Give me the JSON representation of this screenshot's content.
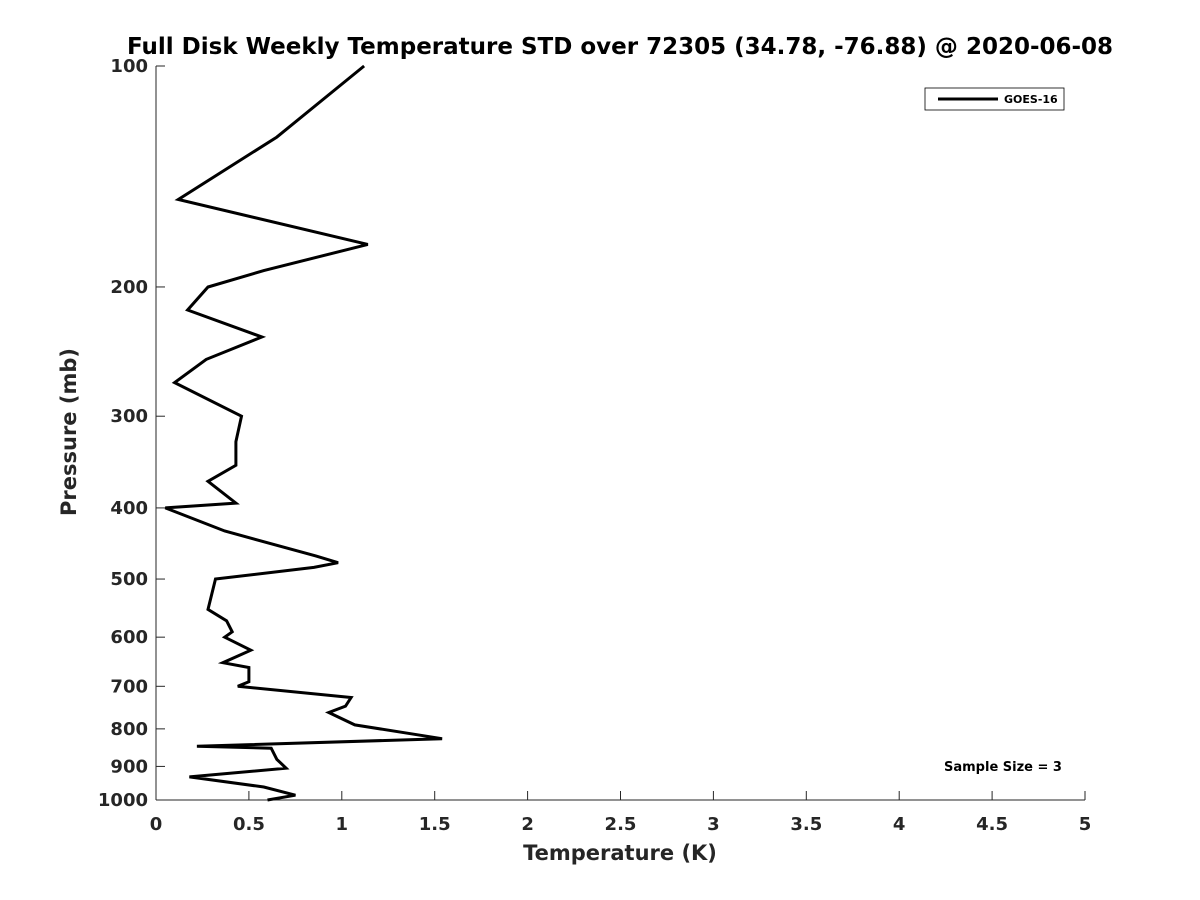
{
  "chart_data": {
    "type": "line",
    "title": "Full Disk Weekly Temperature STD over 72305 (34.78, -76.88) @ 2020-06-08",
    "xlabel": "Temperature (K)",
    "ylabel": "Pressure (mb)",
    "xlim": [
      0,
      5
    ],
    "ylim": [
      1000,
      100
    ],
    "y_scale": "log",
    "y_reversed": true,
    "grid": false,
    "legend_position": "top-right",
    "x_ticks": [
      "0",
      "0.5",
      "1",
      "1.5",
      "2",
      "2.5",
      "3",
      "3.5",
      "4",
      "4.5",
      "5"
    ],
    "y_ticks": [
      "100",
      "200",
      "300",
      "400",
      "500",
      "600",
      "700",
      "800",
      "900",
      "1000"
    ],
    "annotation": "Sample Size = 3",
    "series": [
      {
        "name": "GOES-16",
        "color": "#000000",
        "points": [
          [
            1.12,
            100
          ],
          [
            0.65,
            125
          ],
          [
            0.12,
            152
          ],
          [
            1.14,
            175
          ],
          [
            0.58,
            190
          ],
          [
            0.28,
            200
          ],
          [
            0.17,
            215
          ],
          [
            0.57,
            234
          ],
          [
            0.27,
            251
          ],
          [
            0.1,
            270
          ],
          [
            0.46,
            300
          ],
          [
            0.43,
            325
          ],
          [
            0.43,
            350
          ],
          [
            0.28,
            368
          ],
          [
            0.43,
            394
          ],
          [
            0.05,
            400
          ],
          [
            0.37,
            430
          ],
          [
            0.86,
            465
          ],
          [
            0.98,
            475
          ],
          [
            0.85,
            482
          ],
          [
            0.32,
            500
          ],
          [
            0.28,
            550
          ],
          [
            0.38,
            570
          ],
          [
            0.41,
            590
          ],
          [
            0.37,
            600
          ],
          [
            0.51,
            625
          ],
          [
            0.36,
            650
          ],
          [
            0.5,
            660
          ],
          [
            0.5,
            690
          ],
          [
            0.44,
            700
          ],
          [
            1.05,
            725
          ],
          [
            1.02,
            745
          ],
          [
            0.93,
            760
          ],
          [
            1.07,
            790
          ],
          [
            1.34,
            810
          ],
          [
            1.54,
            825
          ],
          [
            0.22,
            845
          ],
          [
            0.62,
            850
          ],
          [
            0.65,
            880
          ],
          [
            0.7,
            905
          ],
          [
            0.18,
            930
          ],
          [
            0.58,
            960
          ],
          [
            0.75,
            985
          ],
          [
            0.6,
            1000
          ]
        ]
      }
    ]
  }
}
